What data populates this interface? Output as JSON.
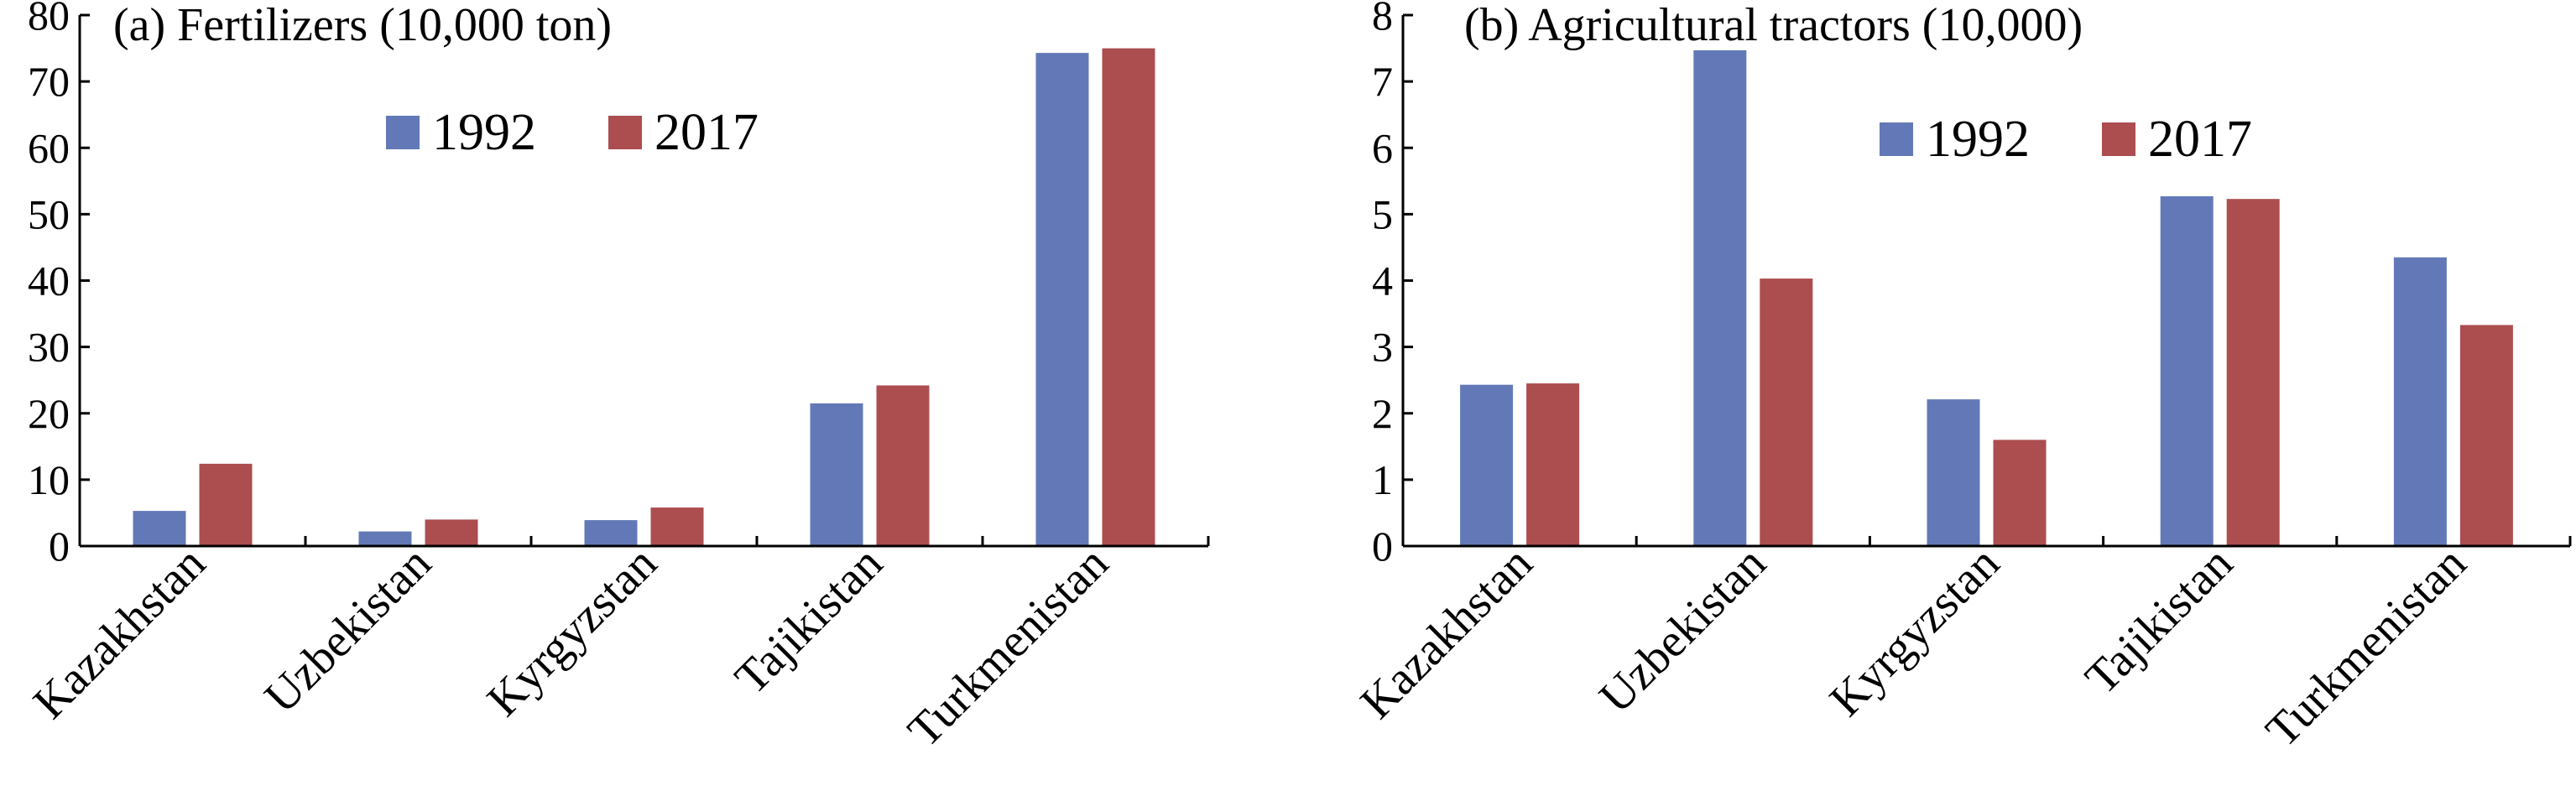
{
  "chart_data": [
    {
      "type": "bar",
      "title": "(a) Fertilizers (10,000 ton)",
      "categories": [
        "Kazakhstan",
        "Uzbekistan",
        "Kyrgyzstan",
        "Tajikistan",
        "Turkmenistan"
      ],
      "series": [
        {
          "name": "1992",
          "values": [
            5.3,
            2.2,
            3.9,
            21.5,
            74.3
          ]
        },
        {
          "name": "2017",
          "values": [
            12.4,
            4.0,
            5.8,
            24.2,
            75.0
          ]
        }
      ],
      "yticks": [
        "0",
        "10",
        "20",
        "30",
        "40",
        "50",
        "60",
        "70",
        "80"
      ],
      "ylim": [
        0,
        80
      ],
      "xlabel": "",
      "ylabel": "",
      "grid": false,
      "legend_position": "top-center"
    },
    {
      "type": "bar",
      "title": "(b) Agricultural tractors (10,000)",
      "categories": [
        "Kazakhstan",
        "Uzbekistan",
        "Kyrgyzstan",
        "Tajikistan",
        "Turkmenistan"
      ],
      "series": [
        {
          "name": "1992",
          "values": [
            2.43,
            7.47,
            2.21,
            5.27,
            4.35
          ]
        },
        {
          "name": "2017",
          "values": [
            2.45,
            4.03,
            1.6,
            5.23,
            3.33
          ]
        }
      ],
      "yticks": [
        "0",
        "1",
        "2",
        "3",
        "4",
        "5",
        "6",
        "7",
        "8"
      ],
      "ylim": [
        0,
        8
      ],
      "xlabel": "",
      "ylabel": "",
      "grid": false,
      "legend_position": "top-right"
    }
  ],
  "colors": {
    "1992": "#6379b7",
    "2017": "#ac4d50",
    "axis": "#000000"
  }
}
